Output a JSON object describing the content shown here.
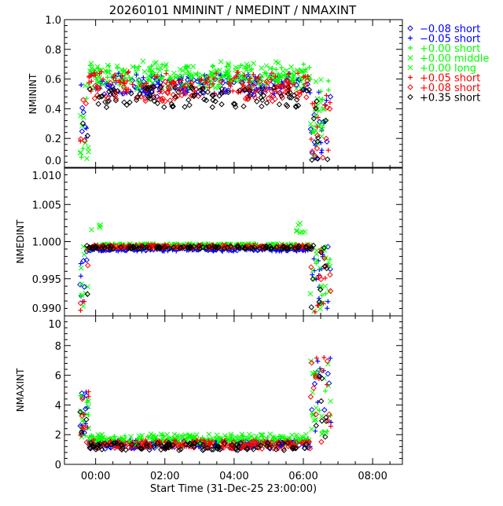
{
  "chart_data": {
    "type": "scatter",
    "title": "20260101 NMININT / NMEDINT / NMAXINT",
    "xlabel": "Start Time (31-Dec-25 23:00:00)",
    "xlim_hours": [
      -0.9,
      8.86
    ],
    "xticks": [
      {
        "v": 0,
        "label": "00:00"
      },
      {
        "v": 2,
        "label": "02:00"
      },
      {
        "v": 4,
        "label": "04:00"
      },
      {
        "v": 6,
        "label": "06:00"
      },
      {
        "v": 8,
        "label": "08:00"
      }
    ],
    "panels": [
      {
        "ylabel": "NMININT",
        "ylim": [
          0,
          1.0
        ],
        "ticks": [
          "0.0",
          "0.2",
          "0.4",
          "0.6",
          "0.8",
          "1.0"
        ],
        "key": "min"
      },
      {
        "ylabel": "NMEDINT",
        "ylim": [
          0.99,
          1.01
        ],
        "ticks": [
          "0.990",
          "0.995",
          "1.000",
          "1.005",
          "1.010"
        ],
        "key": "med"
      },
      {
        "ylabel": "NMAXINT",
        "ylim": [
          0,
          10
        ],
        "ticks": [
          "0",
          "2",
          "4",
          "6",
          "8",
          "10"
        ],
        "key": "max"
      }
    ],
    "time_range_hours": [
      -0.45,
      6.8
    ],
    "series": [
      {
        "name": "−0.08 short",
        "color": "#0000ff",
        "marker": "diamond",
        "min": 0.55,
        "med": 0.999,
        "max": 1.3
      },
      {
        "name": "−0.05 short",
        "color": "#0000ff",
        "marker": "plus",
        "min": 0.57,
        "med": 0.9989,
        "max": 1.4
      },
      {
        "name": "+0.00 short",
        "color": "#00ff00",
        "marker": "plus",
        "min": 0.63,
        "med": 0.9995,
        "max": 1.7
      },
      {
        "name": "+0.00 middle",
        "color": "#00ff00",
        "marker": "x",
        "min": 0.65,
        "med": 0.9995,
        "max": 1.8
      },
      {
        "name": "+0.00 long",
        "color": "#00ff00",
        "marker": "x",
        "min": 0.6,
        "med": 0.9994,
        "max": 1.5
      },
      {
        "name": "+0.05 short",
        "color": "#ff0000",
        "marker": "plus",
        "min": 0.58,
        "med": 0.9993,
        "max": 1.4
      },
      {
        "name": "+0.08 short",
        "color": "#ff0000",
        "marker": "diamond",
        "min": 0.52,
        "med": 0.9993,
        "max": 1.3
      },
      {
        "name": "+0.35 short",
        "color": "#000000",
        "marker": "diamond",
        "min": 0.48,
        "med": 0.9992,
        "max": 1.2
      }
    ]
  }
}
